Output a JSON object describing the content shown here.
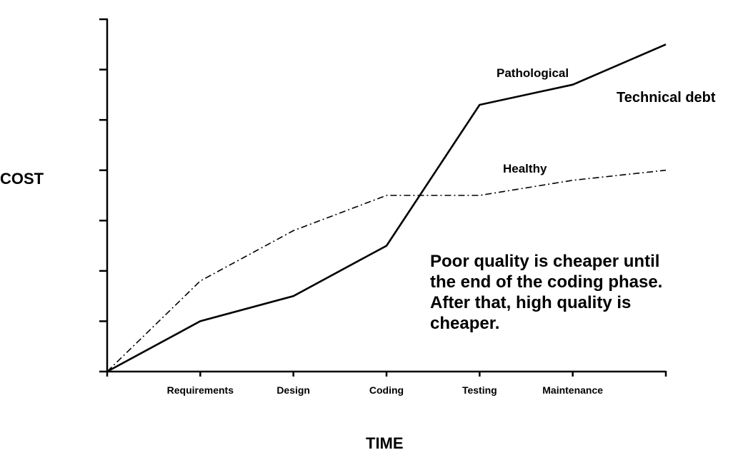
{
  "chart_data": {
    "type": "line",
    "xlabel": "TIME",
    "ylabel": "COST",
    "categories": [
      "Requirements",
      "Design",
      "Coding",
      "Testing",
      "Maintenance"
    ],
    "x": [
      0,
      1,
      2,
      3,
      4,
      5,
      6
    ],
    "xlim": [
      0,
      6
    ],
    "ylim": [
      0,
      7
    ],
    "y_ticks": [
      0,
      1,
      2,
      3,
      4,
      5,
      6,
      7
    ],
    "grid": false,
    "series": [
      {
        "name": "Pathological",
        "style": "solid",
        "color": "#000000",
        "values": [
          0,
          1.0,
          1.5,
          2.5,
          5.3,
          5.7,
          6.5
        ]
      },
      {
        "name": "Healthy",
        "style": "dash-dot",
        "color": "#000000",
        "values": [
          0,
          1.8,
          2.8,
          3.5,
          3.5,
          3.8,
          4.0
        ]
      }
    ],
    "annotations": [
      {
        "text": "Technical debt"
      }
    ],
    "note_lines": [
      "Poor quality is cheaper until",
      "the end of the coding phase.",
      "After that, high quality is",
      "cheaper."
    ]
  }
}
